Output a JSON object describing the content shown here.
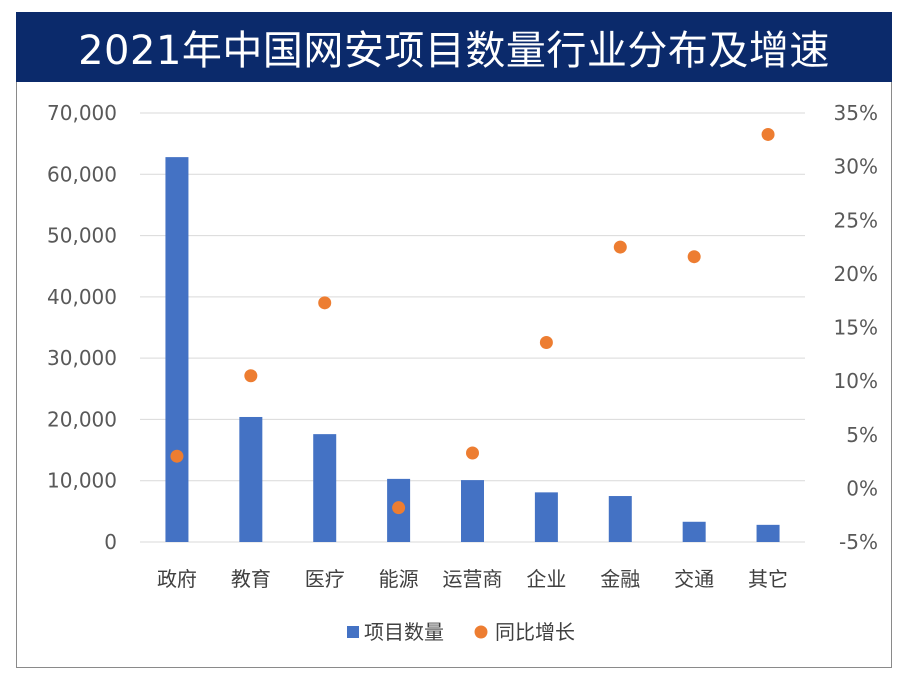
{
  "chart_data": {
    "type": "bar",
    "title": "2021年中国网安项目数量行业分布及增速",
    "categories": [
      "政府",
      "教育",
      "医疗",
      "能源",
      "运营商",
      "企业",
      "金融",
      "交通",
      "其它"
    ],
    "series": [
      {
        "name": "项目数量",
        "type": "bar",
        "axis": "left",
        "values": [
          62800,
          20400,
          17600,
          10300,
          10100,
          8100,
          7500,
          3300,
          2800
        ]
      },
      {
        "name": "同比增长",
        "type": "scatter",
        "axis": "right",
        "values": [
          3.0,
          10.5,
          17.3,
          -1.8,
          3.3,
          13.6,
          22.5,
          21.6,
          33.0
        ]
      }
    ],
    "ylim_left": [
      0,
      70000
    ],
    "ylim_right": [
      -5,
      35
    ],
    "left_ticks": [
      "0",
      "10,000",
      "20,000",
      "30,000",
      "40,000",
      "50,000",
      "60,000",
      "70,000"
    ],
    "right_ticks": [
      "-5%",
      "0%",
      "5%",
      "10%",
      "15%",
      "20%",
      "25%",
      "30%",
      "35%"
    ],
    "grid": true,
    "legend_position": "bottom",
    "colors": {
      "bar": "#4472c4",
      "dot": "#ed7d31",
      "grid": "#d9d9d9",
      "title_bg": "#0b2a6b"
    }
  }
}
